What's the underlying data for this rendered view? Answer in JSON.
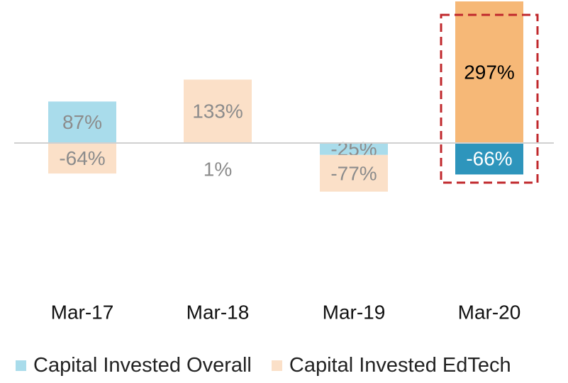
{
  "chart_data": {
    "type": "bar",
    "categories": [
      "Mar-17",
      "Mar-18",
      "Mar-19",
      "Mar-20"
    ],
    "series": [
      {
        "name": "Capital Invested Overall",
        "values": [
          87,
          null,
          -25,
          -66
        ],
        "labels": [
          "87%",
          "",
          "-25%",
          "-66%"
        ],
        "color": "#A9DCEB",
        "highlight_color": "#2E95BC"
      },
      {
        "name": "Capital Invested EdTech",
        "values": [
          -64,
          133,
          -77,
          297
        ],
        "labels": [
          "-64%",
          "133%",
          "-77%",
          "297%"
        ],
        "color": "#FBE0C8",
        "highlight_color": "#F6B877"
      }
    ],
    "extra_labels": [
      {
        "category": "Mar-18",
        "text": "1%"
      }
    ],
    "highlight_category": "Mar-20",
    "highlight_box_color": "#C0282C",
    "zero_line_color": "#D0D0D0",
    "label_color": "#8C8C8C",
    "title": "",
    "xlabel": "",
    "ylabel": "",
    "legend_position": "bottom"
  }
}
